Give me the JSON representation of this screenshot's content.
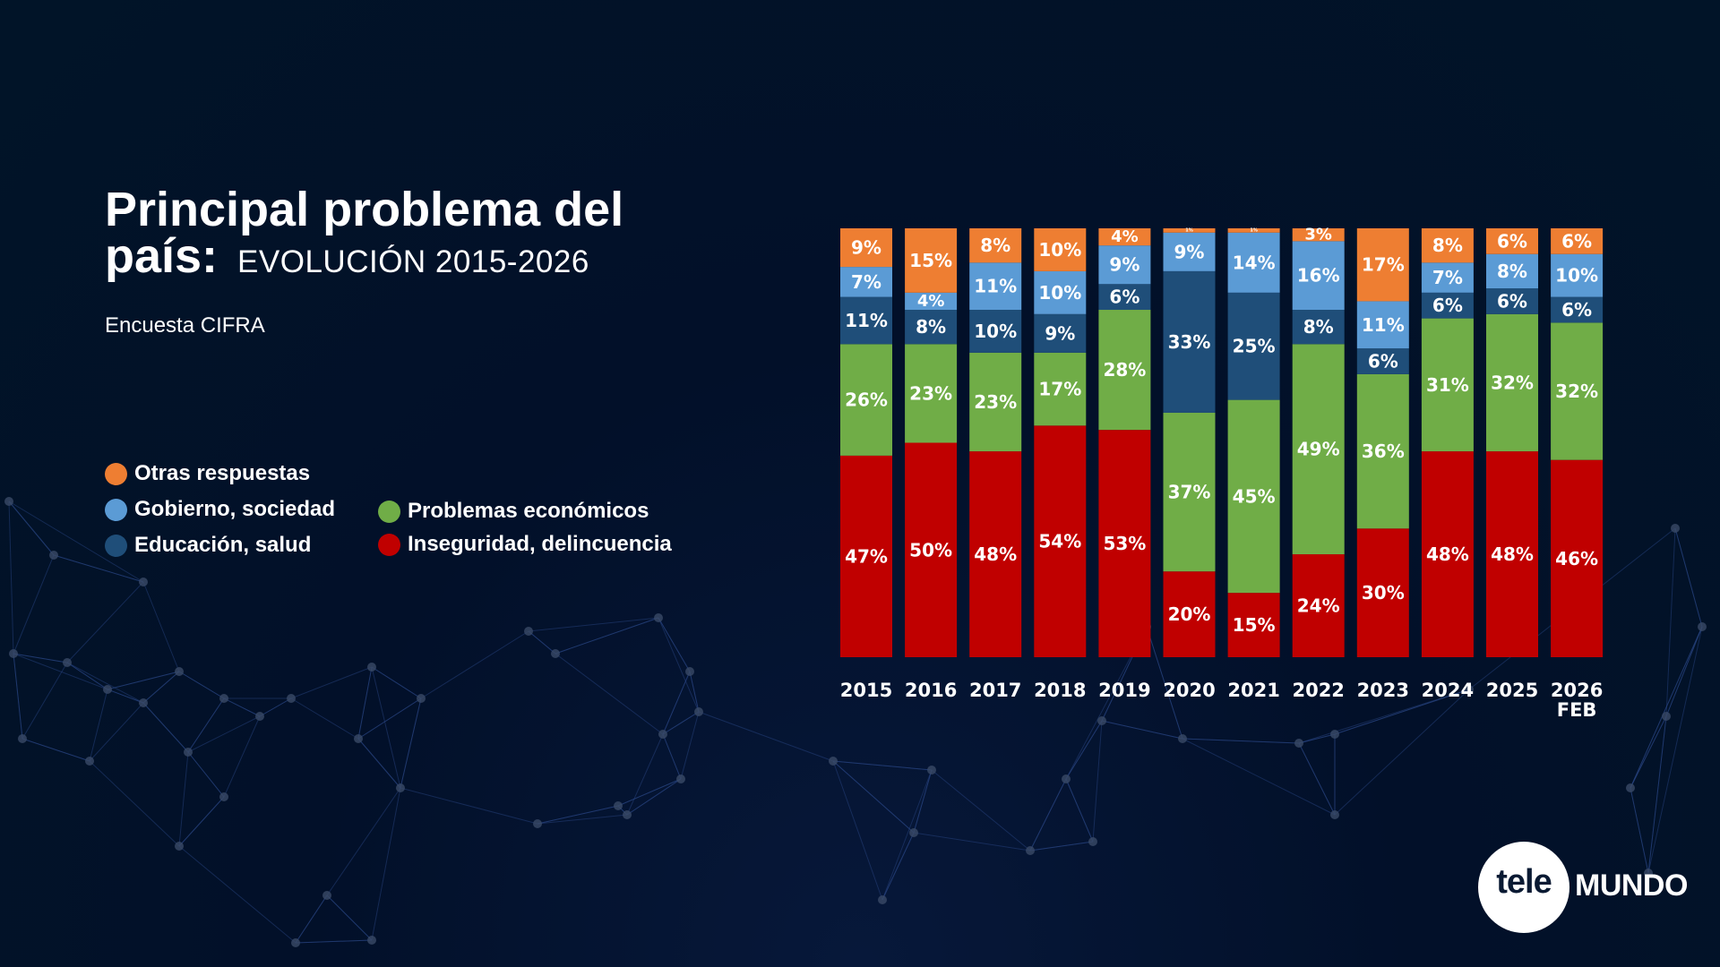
{
  "header": {
    "title_line1": "Principal problema del",
    "title_line2": "país:",
    "subtitle": "EVOLUCIÓN 2015-2026",
    "source": "Encuesta CIFRA"
  },
  "legend": [
    {
      "label": "Otras respuestas",
      "color": "#EE7E32"
    },
    {
      "label": "Gobierno, sociedad",
      "color": "#5B9BD5"
    },
    {
      "label": "Educación, salud",
      "color": "#1F4E79"
    },
    {
      "label": "Problemas económicos",
      "color": "#70AD47"
    },
    {
      "label": "Inseguridad, delincuencia",
      "color": "#C00000"
    }
  ],
  "logo": {
    "part1": "tele",
    "part2": "MUNDO"
  },
  "chart_data": {
    "type": "bar",
    "stacked": true,
    "title": "Principal problema del país: EVOLUCIÓN 2015-2026",
    "subtitle": "Encuesta CIFRA",
    "xlabel": "",
    "ylabel": "",
    "ylim": [
      0,
      100
    ],
    "unit": "%",
    "categories": [
      "2015",
      "2016",
      "2017",
      "2018",
      "2019",
      "2020",
      "2021",
      "2022",
      "2023",
      "2024",
      "2025",
      "2026"
    ],
    "category_sublabels": [
      "",
      "",
      "",
      "",
      "",
      "",
      "",
      "",
      "",
      "",
      "",
      "FEB"
    ],
    "series": [
      {
        "name": "Inseguridad, delincuencia",
        "color": "#C00000",
        "values": [
          47,
          50,
          48,
          54,
          53,
          20,
          15,
          24,
          30,
          48,
          48,
          46
        ]
      },
      {
        "name": "Problemas económicos",
        "color": "#70AD47",
        "values": [
          26,
          23,
          23,
          17,
          28,
          37,
          45,
          49,
          36,
          31,
          32,
          32
        ]
      },
      {
        "name": "Educación, salud",
        "color": "#1F4E79",
        "values": [
          11,
          8,
          10,
          9,
          6,
          33,
          25,
          8,
          6,
          6,
          6,
          6
        ]
      },
      {
        "name": "Gobierno, sociedad",
        "color": "#5B9BD5",
        "values": [
          7,
          4,
          11,
          10,
          9,
          9,
          14,
          16,
          11,
          7,
          8,
          10
        ]
      },
      {
        "name": "Otras respuestas",
        "color": "#EE7E32",
        "values": [
          9,
          15,
          8,
          10,
          4,
          1,
          1,
          3,
          17,
          8,
          6,
          6
        ]
      }
    ],
    "grid": false,
    "legend_position": "left"
  }
}
